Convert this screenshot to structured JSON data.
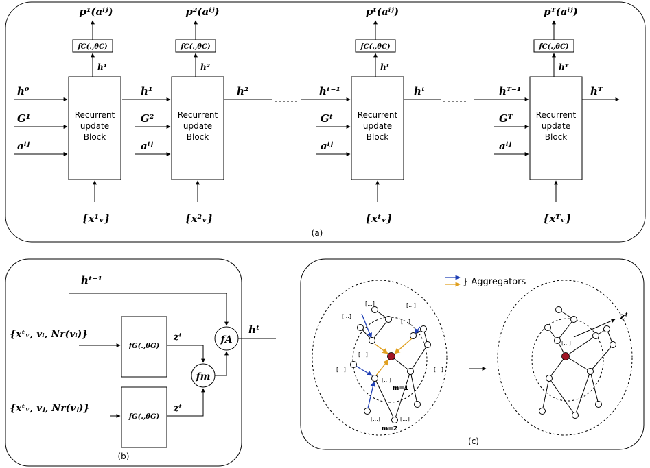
{
  "panel_a": {
    "caption": "(a)",
    "block_label": [
      "Recurrent",
      "update",
      "Block"
    ],
    "classifier_label": "fC(.,θC)",
    "stages": [
      {
        "hin": "h⁰",
        "g": "G¹",
        "a": "aⁱʲ",
        "x": "{x¹ᵥ}",
        "hout": "h¹",
        "p": "p¹(aⁱʲ)"
      },
      {
        "hin": "h¹",
        "g": "G²",
        "a": "aⁱʲ",
        "x": "{x²ᵥ}",
        "hout": "h²",
        "p": "p²(aⁱʲ)"
      },
      {
        "hin": "hᵗ⁻¹",
        "g": "Gᵗ",
        "a": "aⁱʲ",
        "x": "{xᵗᵥ}",
        "hout": "hᵗ",
        "p": "pᵗ(aⁱʲ)"
      },
      {
        "hin": "hᵀ⁻¹",
        "g": "Gᵀ",
        "a": "aⁱʲ",
        "x": "{xᵀᵥ}",
        "hout": "hᵀ",
        "p": "pᵀ(aⁱʲ)"
      }
    ]
  },
  "panel_b": {
    "caption": "(b)",
    "h_prev": "hᵗ⁻¹",
    "h_out": "hᵗ",
    "input_i": "{xᵗᵥ, vᵢ, Nr(vᵢ)}",
    "input_j": "{xᵗᵥ, vⱼ, Nr(vⱼ)}",
    "fg_label": "fG(.,θG)",
    "z_i": "zᵗ",
    "z_j": "zᵗ",
    "fm": "fm",
    "fa": "fA"
  },
  "panel_c": {
    "caption": "(c)",
    "legend": "} Aggregators",
    "m1": "m=1",
    "m2": "m=2",
    "ellipsis": "[...]",
    "z_label": "zᵗ",
    "colors": {
      "blue": "#1f3fb5",
      "orange": "#e0a020",
      "center": "#a01525"
    }
  }
}
